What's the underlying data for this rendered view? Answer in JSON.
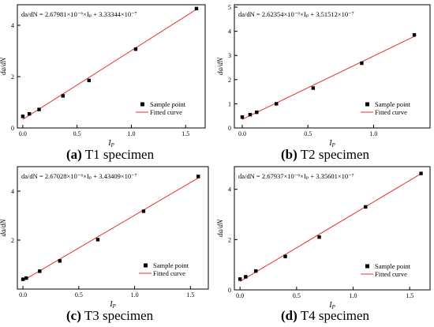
{
  "chart_data": [
    {
      "type": "scatter",
      "equation": "da/dN = 2.67981×10⁻⁶×Iₚ + 3.33344×10⁻⁷",
      "xlabel": "IP",
      "ylabel": "da/dN",
      "xlim": [
        -0.05,
        1.68
      ],
      "ylim": [
        0,
        4.8
      ],
      "xticks": [
        0.0,
        0.5,
        1.0,
        1.5
      ],
      "yticks": [
        0,
        2,
        4
      ],
      "grid": false,
      "legend_position": "bottom-right",
      "legend": [
        "Sample point",
        "Fitted curve"
      ],
      "series": [
        {
          "name": "Sample point",
          "x": [
            0.0,
            0.06,
            0.15,
            0.37,
            0.61,
            1.04,
            1.6
          ],
          "y": [
            0.45,
            0.55,
            0.72,
            1.25,
            1.85,
            3.07,
            4.65
          ]
        },
        {
          "name": "Fitted curve",
          "x": [
            0.0,
            1.6
          ],
          "y": [
            0.333,
            4.62
          ]
        }
      ],
      "caption": {
        "label": "(a)",
        "text": " T1 specimen"
      }
    },
    {
      "type": "scatter",
      "equation": "da/dN = 2.62354×10⁻⁶×Iₚ + 3.51512×10⁻⁷",
      "xlabel": "IP",
      "ylabel": "da/dN",
      "xlim": [
        -0.06,
        1.43
      ],
      "ylim": [
        0,
        5.1
      ],
      "xticks": [
        0.0,
        0.5,
        1.0
      ],
      "yticks": [
        0,
        1,
        2,
        3,
        4,
        5
      ],
      "grid": false,
      "legend_position": "bottom-right",
      "legend": [
        "Sample point",
        "Fitted curve"
      ],
      "series": [
        {
          "name": "Sample point",
          "x": [
            0.0,
            0.06,
            0.11,
            0.26,
            0.54,
            0.91,
            1.31
          ],
          "y": [
            0.45,
            0.55,
            0.65,
            1.0,
            1.65,
            2.68,
            3.85
          ]
        },
        {
          "name": "Fitted curve",
          "x": [
            0.0,
            1.31
          ],
          "y": [
            0.352,
            3.79
          ]
        }
      ],
      "caption": {
        "label": "(b)",
        "text": " T2 specimen"
      }
    },
    {
      "type": "scatter",
      "equation": "da/dN = 2.67028×10⁻⁶×Iₚ + 3.43409×10⁻⁷",
      "xlabel": "IP",
      "ylabel": "da/dN",
      "xlim": [
        -0.05,
        1.66
      ],
      "ylim": [
        0,
        5.0
      ],
      "xticks": [
        0.0,
        0.5,
        1.0,
        1.5
      ],
      "yticks": [
        2,
        4
      ],
      "grid": false,
      "legend_position": "bottom-right",
      "legend": [
        "Sample point",
        "Fitted curve"
      ],
      "series": [
        {
          "name": "Sample point",
          "x": [
            0.0,
            0.03,
            0.15,
            0.33,
            0.67,
            1.08,
            1.57
          ],
          "y": [
            0.4,
            0.45,
            0.73,
            1.15,
            2.02,
            3.18,
            4.6
          ]
        },
        {
          "name": "Fitted curve",
          "x": [
            0.0,
            1.57
          ],
          "y": [
            0.343,
            4.54
          ]
        }
      ],
      "caption": {
        "label": "(c)",
        "text": " T3 specimen"
      }
    },
    {
      "type": "scatter",
      "equation": "da/dN = 2.67937×10⁻⁶×Iₚ + 3.35601×10⁻⁷",
      "xlabel": "IP",
      "ylabel": "da/dN",
      "xlim": [
        -0.05,
        1.68
      ],
      "ylim": [
        0,
        4.9
      ],
      "xticks": [
        0.0,
        0.5,
        1.0,
        1.5
      ],
      "yticks": [
        0,
        2,
        4
      ],
      "grid": false,
      "legend_position": "bottom-right",
      "legend": [
        "Sample point",
        "Fitted curve"
      ],
      "series": [
        {
          "name": "Sample point",
          "x": [
            0.0,
            0.05,
            0.14,
            0.4,
            0.7,
            1.11,
            1.6
          ],
          "y": [
            0.43,
            0.52,
            0.75,
            1.33,
            2.1,
            3.3,
            4.63
          ]
        },
        {
          "name": "Fitted curve",
          "x": [
            0.0,
            1.6
          ],
          "y": [
            0.336,
            4.62
          ]
        }
      ],
      "caption": {
        "label": "(d)",
        "text": " T4 specimen"
      }
    }
  ]
}
